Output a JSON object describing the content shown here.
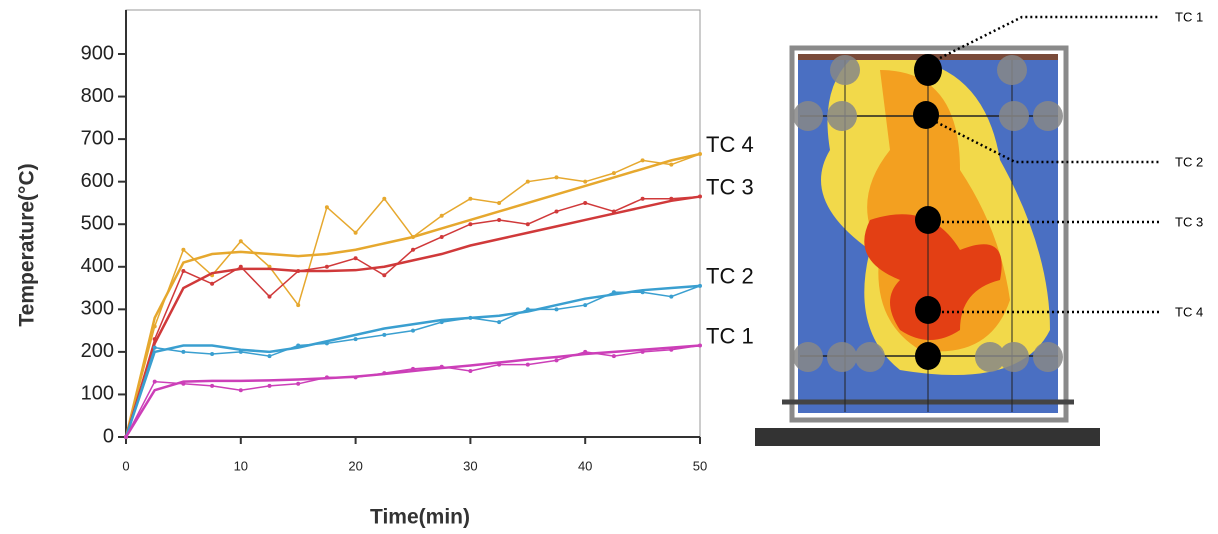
{
  "chart_data": {
    "type": "line",
    "x_label": "Time(min)",
    "y_label": "Temperature(°C)",
    "x": [
      0,
      2.5,
      5,
      7.5,
      10,
      12.5,
      15,
      17.5,
      20,
      22.5,
      25,
      27.5,
      30,
      32.5,
      35,
      37.5,
      40,
      42.5,
      45,
      47.5,
      50
    ],
    "xlim": [
      0,
      50
    ],
    "xticks": [
      0,
      10,
      20,
      30,
      40,
      50
    ],
    "ylim": [
      0,
      900
    ],
    "yticks": [
      0,
      100,
      200,
      300,
      400,
      500,
      600,
      700,
      800,
      900
    ],
    "series": [
      {
        "name": "TC 4",
        "color": "#e6a82e",
        "values": [
          0,
          260,
          440,
          380,
          460,
          400,
          310,
          540,
          480,
          560,
          470,
          520,
          560,
          550,
          600,
          610,
          600,
          620,
          650,
          640,
          665
        ],
        "fit": [
          0,
          280,
          410,
          430,
          435,
          430,
          425,
          430,
          440,
          455,
          470,
          490,
          510,
          530,
          550,
          570,
          590,
          610,
          630,
          650,
          665
        ]
      },
      {
        "name": "TC 3",
        "color": "#d0393a",
        "values": [
          0,
          230,
          390,
          360,
          400,
          330,
          390,
          400,
          420,
          380,
          440,
          470,
          500,
          510,
          500,
          530,
          550,
          530,
          560,
          560,
          565
        ],
        "fit": [
          0,
          220,
          350,
          385,
          395,
          395,
          390,
          390,
          392,
          400,
          415,
          430,
          450,
          465,
          480,
          495,
          510,
          525,
          540,
          555,
          565
        ]
      },
      {
        "name": "TC 2",
        "color": "#3a9fd0",
        "values": [
          0,
          210,
          200,
          195,
          200,
          190,
          215,
          220,
          230,
          240,
          250,
          270,
          280,
          270,
          300,
          300,
          310,
          340,
          340,
          330,
          355
        ],
        "fit": [
          0,
          200,
          215,
          215,
          205,
          200,
          210,
          225,
          240,
          255,
          265,
          275,
          280,
          285,
          295,
          310,
          325,
          335,
          345,
          350,
          355
        ]
      },
      {
        "name": "TC 1",
        "color": "#cc3fb8",
        "values": [
          0,
          130,
          125,
          120,
          110,
          120,
          125,
          140,
          140,
          150,
          160,
          165,
          155,
          170,
          170,
          180,
          200,
          190,
          200,
          205,
          215
        ],
        "fit": [
          0,
          110,
          130,
          132,
          132,
          133,
          135,
          138,
          142,
          148,
          155,
          162,
          168,
          175,
          182,
          188,
          195,
          200,
          205,
          210,
          215
        ]
      }
    ]
  },
  "diagram": {
    "labels": [
      "TC 1",
      "TC 2",
      "TC 3",
      "TC 4"
    ]
  }
}
